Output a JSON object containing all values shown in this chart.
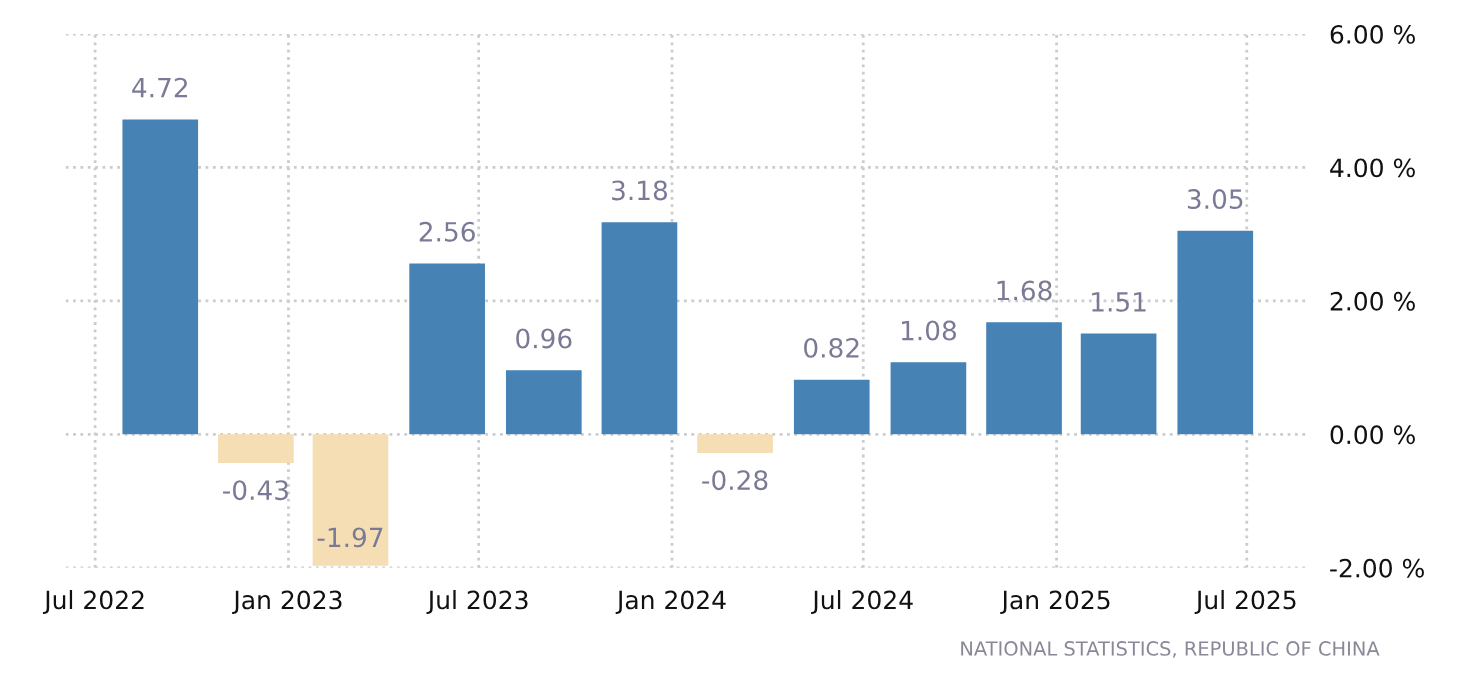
{
  "chart_data": {
    "type": "bar",
    "x": [
      "2022-09-01",
      "2022-12-01",
      "2023-03-01",
      "2023-06-01",
      "2023-09-01",
      "2023-12-01",
      "2024-03-01",
      "2024-06-01",
      "2024-09-01",
      "2024-12-01",
      "2025-03-01",
      "2025-06-01"
    ],
    "values": [
      4.72,
      -0.43,
      -1.97,
      2.56,
      0.96,
      3.18,
      -0.28,
      0.82,
      1.08,
      1.68,
      1.51,
      3.05
    ],
    "colors": [
      "#4682b4",
      "#f5deb3",
      "#f5deb3",
      "#4682b4",
      "#4682b4",
      "#4682b4",
      "#f5deb3",
      "#4682b4",
      "#4682b4",
      "#4682b4",
      "#4682b4",
      "#4682b4"
    ],
    "data_labels": true,
    "xlim": [
      "2022-06-03",
      "2025-08-27"
    ],
    "xticks": [
      {
        "value": "2022-07-01",
        "label": "Jul 2022"
      },
      {
        "value": "2023-01-01",
        "label": "Jan 2023"
      },
      {
        "value": "2023-07-01",
        "label": "Jul 2023"
      },
      {
        "value": "2024-01-01",
        "label": "Jan 2024"
      },
      {
        "value": "2024-07-01",
        "label": "Jul 2024"
      },
      {
        "value": "2025-01-01",
        "label": "Jan 2025"
      },
      {
        "value": "2025-07-01",
        "label": "Jul 2025"
      }
    ],
    "ylim": [
      -2,
      6
    ],
    "yticks": [
      {
        "value": -2,
        "label": "-2.00 %"
      },
      {
        "value": 0,
        "label": "0.00 %"
      },
      {
        "value": 2,
        "label": "2.00 %"
      },
      {
        "value": 4,
        "label": "4.00 %"
      },
      {
        "value": 6,
        "label": "6.00 %"
      }
    ],
    "grid": true,
    "annotations": [
      "NATIONAL STATISTICS, REPUBLIC OF CHINA"
    ]
  }
}
